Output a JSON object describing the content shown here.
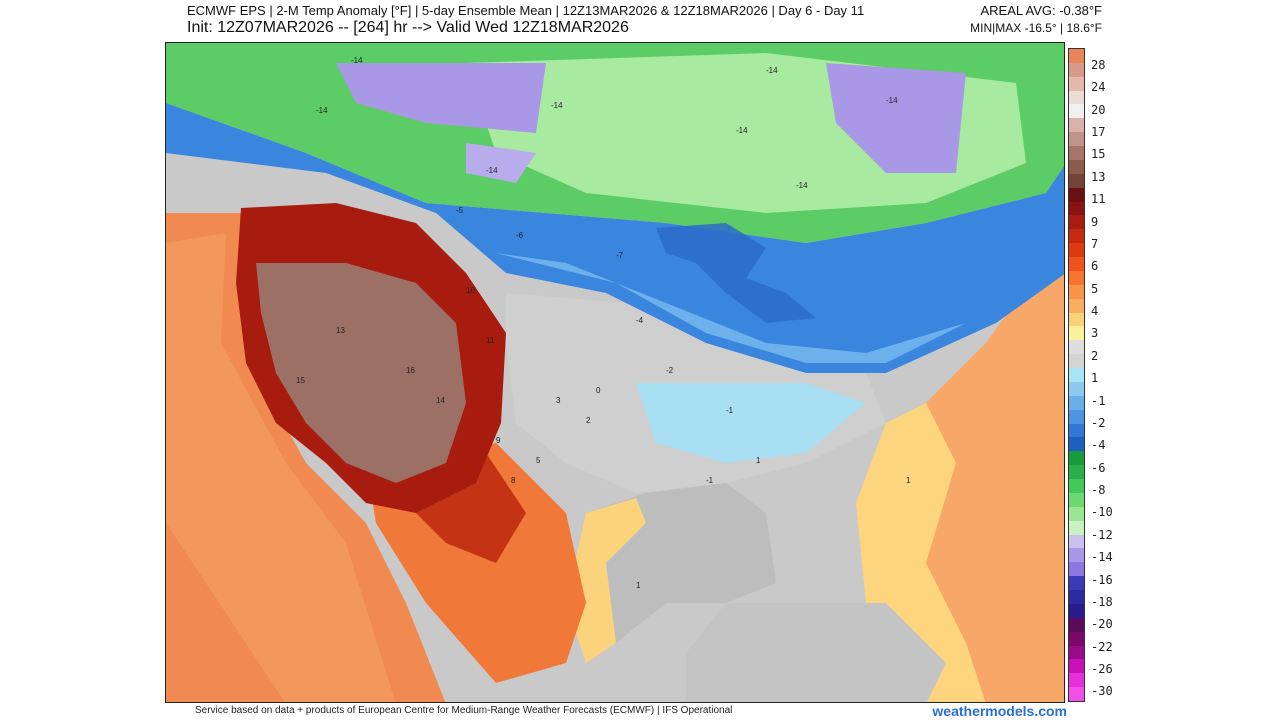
{
  "header": {
    "title": "ECMWF EPS | 2-M Temp Anomaly [°F] | 5-day Ensemble Mean | 12Z13MAR2026 & 12Z18MAR2026 | Day 6 - Day 11",
    "subtitle": "Init: 12Z07MAR2026 -- [264] hr --> Valid Wed 12Z18MAR2026",
    "areal_avg": "AREAL AVG: -0.38°F",
    "min_max": "MIN|MAX -16.5° | 18.6°F"
  },
  "colorbar": {
    "labels": [
      "28",
      "24",
      "20",
      "17",
      "15",
      "13",
      "11",
      "9",
      "7",
      "6",
      "5",
      "4",
      "3",
      "2",
      "1",
      "-1",
      "-2",
      "-4",
      "-6",
      "-8",
      "-10",
      "-12",
      "-14",
      "-16",
      "-18",
      "-20",
      "-22",
      "-26",
      "-30"
    ],
    "colors": [
      "#e9855a",
      "#d99a8a",
      "#e6b9ae",
      "#ebdcd8",
      "#f0f0f0",
      "#d9b3a9",
      "#c0948a",
      "#a87467",
      "#8e5a4c",
      "#744236",
      "#6a1010",
      "#8a1212",
      "#a81d10",
      "#c52a10",
      "#de3a10",
      "#f0541c",
      "#f6752e",
      "#f7944a",
      "#f8b060",
      "#fad27a",
      "#fbf19a",
      "#dddddd",
      "#d4d4d4",
      "#a8e4f6",
      "#8cc8f0",
      "#6aaeea",
      "#4a94e0",
      "#2f78d6",
      "#1e60c2",
      "#1a9a3a",
      "#2ab04a",
      "#42c95a",
      "#6bd870",
      "#9ae692",
      "#c9f2c2",
      "#c8c0ee",
      "#a898e8",
      "#8a78e0",
      "#3a3ab8",
      "#2c2ca0",
      "#2a1a8a",
      "#5a0a5a",
      "#7a0a6a",
      "#9a0a8a",
      "#c810b8",
      "#e830d8",
      "#f050e8"
    ]
  },
  "map": {
    "contour_labels": [
      "-14",
      "-14",
      "-14",
      "-14",
      "-14",
      "-14",
      "-14",
      "-14",
      "-5",
      "-6",
      "-7",
      "-4",
      "-2",
      "-1",
      "0",
      "1",
      "-1",
      "1",
      "1",
      "13",
      "15",
      "16",
      "14",
      "10",
      "11",
      "9",
      "8",
      "5",
      "3",
      "2"
    ]
  },
  "footer": {
    "credit": "Service based on data + products of European Centre for Medium-Range Weather Forecasts (ECMWF) | IFS Operational",
    "brand": "weathermodels.com"
  }
}
